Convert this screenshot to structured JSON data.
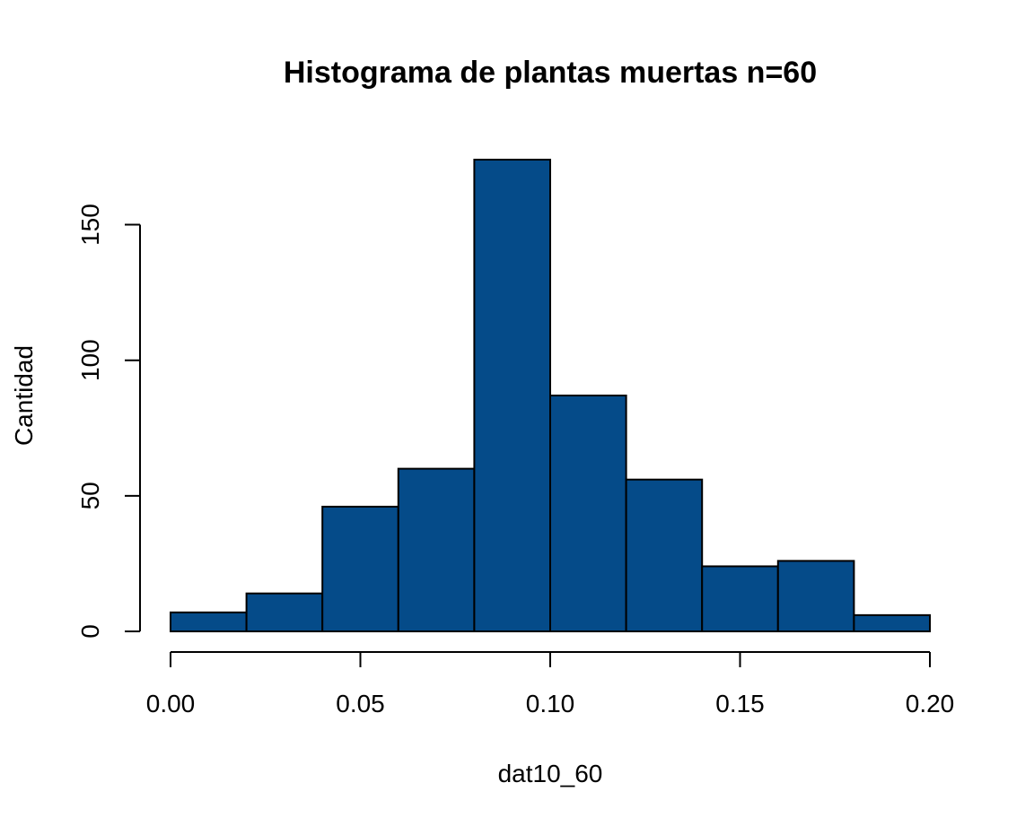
{
  "chart_data": {
    "type": "bar",
    "title": "Histograma de plantas muertas n=60",
    "xlabel": "dat10_60",
    "ylabel": "Cantidad",
    "bin_edges": [
      0.0,
      0.02,
      0.04,
      0.06,
      0.08,
      0.1,
      0.12,
      0.14,
      0.16,
      0.18,
      0.2
    ],
    "values": [
      7,
      14,
      46,
      60,
      174,
      87,
      56,
      24,
      26,
      6
    ],
    "xlim": [
      0.0,
      0.2
    ],
    "ylim": [
      0,
      174
    ],
    "x_ticks": [
      0.0,
      0.05,
      0.1,
      0.15,
      0.2
    ],
    "x_tick_labels": [
      "0.00",
      "0.05",
      "0.10",
      "0.15",
      "0.20"
    ],
    "y_ticks": [
      0,
      50,
      100,
      150
    ],
    "y_tick_labels": [
      "0",
      "50",
      "100",
      "150"
    ],
    "bar_color": "#054b89",
    "grid": false,
    "legend": "none"
  }
}
